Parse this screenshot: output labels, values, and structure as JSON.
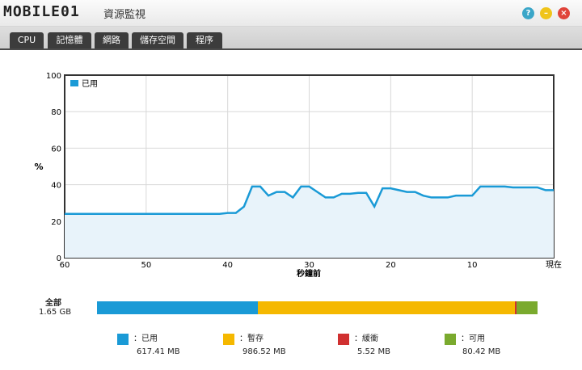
{
  "window": {
    "brand": "MOBILE01",
    "title": "資源監視"
  },
  "window_buttons": [
    {
      "icon": "help-icon",
      "glyph": "?",
      "color": "#3aa6c8"
    },
    {
      "icon": "minimize-icon",
      "glyph": "–",
      "color": "#f0c419"
    },
    {
      "icon": "close-icon",
      "glyph": "×",
      "color": "#e0443a"
    }
  ],
  "tabs": [
    {
      "label": "CPU",
      "active": false
    },
    {
      "label": "記憶體",
      "active": true
    },
    {
      "label": "網路",
      "active": false
    },
    {
      "label": "儲存空間",
      "active": false
    },
    {
      "label": "程序",
      "active": false
    }
  ],
  "chart_data": {
    "type": "line",
    "ylabel": "%",
    "xlabel": "秒鐘前",
    "ylim": [
      0,
      100
    ],
    "xlim": [
      60,
      0
    ],
    "yticks": [
      "0",
      "20",
      "40",
      "60",
      "80",
      "100"
    ],
    "xticks": [
      {
        "v": 60,
        "label": "60"
      },
      {
        "v": 50,
        "label": "50"
      },
      {
        "v": 40,
        "label": "40"
      },
      {
        "v": 30,
        "label": "30"
      },
      {
        "v": 20,
        "label": "20"
      },
      {
        "v": 10,
        "label": "10"
      },
      {
        "v": 0,
        "label": "現在"
      }
    ],
    "grid": true,
    "legend_position": "top-left",
    "series": [
      {
        "name": "已用",
        "color": "#1a9ad6",
        "x": [
          60,
          59,
          58,
          57,
          56,
          55,
          54,
          53,
          52,
          51,
          50,
          49,
          48,
          47,
          46,
          45,
          44,
          43,
          42,
          41,
          40,
          39,
          38,
          37,
          36,
          35,
          34,
          33,
          32,
          31,
          30,
          29,
          28,
          27,
          26,
          25,
          24,
          23,
          22,
          21,
          20,
          19,
          18,
          17,
          16,
          15,
          14,
          13,
          12,
          11,
          10,
          9,
          8,
          7,
          6,
          5,
          4,
          3,
          2,
          1,
          0
        ],
        "y": [
          24,
          24,
          24,
          24,
          24,
          24,
          24,
          24,
          24,
          24,
          24,
          24,
          24,
          24,
          24,
          24,
          24,
          24,
          24,
          24,
          24.5,
          24.5,
          28,
          39,
          39,
          34,
          36,
          36,
          33,
          39,
          39,
          36,
          33,
          33,
          35,
          35,
          35.5,
          35.5,
          28,
          38,
          38,
          37,
          36,
          36,
          34,
          33,
          33,
          33,
          34,
          34,
          34,
          39,
          39,
          39,
          39,
          38.5,
          38.5,
          38.5,
          38.5,
          37,
          37
        ]
      }
    ]
  },
  "summary": {
    "total_label": "全部",
    "total_value": "1.65 GB",
    "segments": [
      {
        "key": "used",
        "label": "：已用",
        "value": "617.41 MB",
        "mb": 617.41,
        "color": "#1a9ad6"
      },
      {
        "key": "cached",
        "label": "：暫存",
        "value": "986.52 MB",
        "mb": 986.52,
        "color": "#f5b800"
      },
      {
        "key": "buffer",
        "label": "：緩衝",
        "value": "5.52 MB",
        "mb": 5.52,
        "color": "#d03030"
      },
      {
        "key": "free",
        "label": "：可用",
        "value": "80.42 MB",
        "mb": 80.42,
        "color": "#7aaa2e"
      }
    ]
  }
}
